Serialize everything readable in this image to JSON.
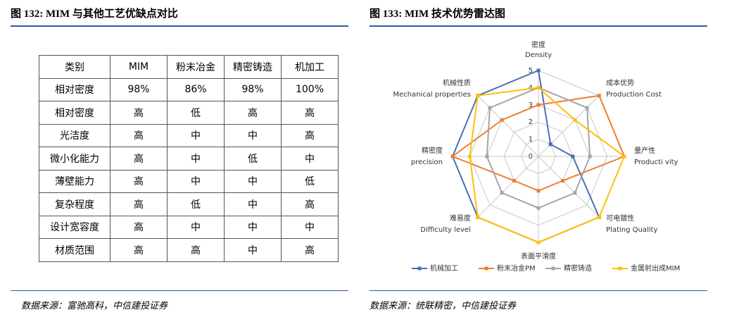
{
  "left_title": "图 132: MIM 与其他工艺优缺点对比",
  "table": {
    "header": [
      "类别",
      "MIM",
      "粉末冶金",
      "精密铸造",
      "机加工"
    ],
    "rows": [
      [
        "相对密度",
        "98%",
        "86%",
        "98%",
        "100%"
      ],
      [
        "相对密度",
        "高",
        "低",
        "高",
        "高"
      ],
      [
        "光洁度",
        "高",
        "中",
        "中",
        "高"
      ],
      [
        "微小化能力",
        "高",
        "中",
        "低",
        "中"
      ],
      [
        "薄壁能力",
        "高",
        "中",
        "中",
        "低"
      ],
      [
        "复杂程度",
        "高",
        "低",
        "中",
        "高"
      ],
      [
        "设计宽容度",
        "高",
        "中",
        "中",
        "中"
      ],
      [
        "材质范围",
        "高",
        "高",
        "中",
        "高"
      ]
    ]
  },
  "left_source": "数据来源：富驰高科，中信建投证券",
  "right_title": "图 133: MIM 技术优势雷达图",
  "chart_data": {
    "type": "radar",
    "categories": [
      "密度",
      "成本优势",
      "量产性",
      "可电镀性",
      "表面平滑度",
      "难易度",
      "精密度",
      "机械性质"
    ],
    "categories_en": [
      "Density",
      "Production Cost",
      "Producti vity",
      "Plating Quality",
      null,
      "Difficulty level",
      "precision",
      "Mechanical properties"
    ],
    "rlim": [
      0,
      5
    ],
    "rticks": [
      0,
      1,
      2,
      3,
      4,
      5
    ],
    "series": [
      {
        "name": "机械加工",
        "color": "#4a6fb5",
        "values": [
          5,
          1,
          2,
          5,
          5,
          5,
          5,
          5
        ]
      },
      {
        "name": "粉末冶金PM",
        "color": "#ed7d31",
        "values": [
          3,
          5,
          5,
          2,
          2,
          2,
          5,
          3
        ]
      },
      {
        "name": "精密铸造",
        "color": "#a5a5a5",
        "values": [
          4,
          4,
          3,
          3,
          3,
          3,
          3,
          4
        ]
      },
      {
        "name": "金属射出成MIM",
        "color": "#ffc000",
        "values": [
          4,
          3,
          5,
          5,
          5,
          5,
          4,
          5
        ]
      }
    ]
  },
  "right_source": "数据来源：统联精密，中信建投证券"
}
